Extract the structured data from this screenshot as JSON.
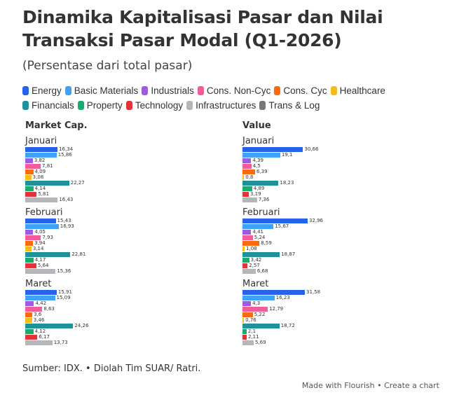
{
  "header": {
    "title": "Dinamika Kapitalisasi Pasar dan Nilai Transaksi Pasar Modal (Q1-2026)",
    "subtitle": "(Persentase dari total pasar)"
  },
  "legend": [
    {
      "label": "Energy",
      "color": "#2563eb"
    },
    {
      "label": "Basic Materials",
      "color": "#3fa2f7"
    },
    {
      "label": "Industrials",
      "color": "#9d5ce0"
    },
    {
      "label": "Cons. Non-Cyc",
      "color": "#f25c9a"
    },
    {
      "label": "Cons. Cyc",
      "color": "#fa6b10"
    },
    {
      "label": "Healthcare",
      "color": "#f4bd1b"
    },
    {
      "label": "Financials",
      "color": "#1f9199"
    },
    {
      "label": "Property",
      "color": "#19aa6e"
    },
    {
      "label": "Technology",
      "color": "#e2333b"
    },
    {
      "label": "Infrastructures",
      "color": "#b4b6b9"
    },
    {
      "label": "Trans & Log",
      "color": "#787878"
    }
  ],
  "chart_data": [
    {
      "type": "bar",
      "orientation": "horizontal",
      "title": "Market Cap.",
      "groups": [
        "Januari",
        "Februari",
        "Maret"
      ],
      "series": [
        {
          "name": "Energy",
          "values": [
            16.34,
            15.43,
            15.91
          ]
        },
        {
          "name": "Basic Materials",
          "values": [
            15.86,
            16.93,
            15.09
          ]
        },
        {
          "name": "Industrials",
          "values": [
            3.82,
            4.05,
            4.42
          ]
        },
        {
          "name": "Cons. Non-Cyc",
          "values": [
            7.81,
            7.93,
            8.63
          ]
        },
        {
          "name": "Cons. Cyc",
          "values": [
            4.09,
            3.94,
            3.6
          ]
        },
        {
          "name": "Healthcare",
          "values": [
            3.08,
            3.14,
            3.46
          ]
        },
        {
          "name": "Financials",
          "values": [
            22.27,
            22.81,
            24.26
          ]
        },
        {
          "name": "Property",
          "values": [
            4.14,
            4.17,
            4.12
          ]
        },
        {
          "name": "Technology",
          "values": [
            5.81,
            5.64,
            6.17
          ]
        },
        {
          "name": "Infrastructures",
          "values": [
            16.43,
            15.36,
            13.73
          ]
        }
      ],
      "value_labels": [
        [
          "16,34",
          "15,86",
          "3,82",
          "7,81",
          "4,09",
          "3,08",
          "22,27",
          "4,14",
          "5,81",
          "16,43"
        ],
        [
          "15,43",
          "16,93",
          "4,05",
          "7,93",
          "3,94",
          "3,14",
          "22,81",
          "4,17",
          "5,64",
          "15,36"
        ],
        [
          "15,91",
          "15,09",
          "4,42",
          "8,63",
          "3,6",
          "3,46",
          "24,26",
          "4,12",
          "6,17",
          "13,73"
        ]
      ],
      "unit": "%",
      "grid": false
    },
    {
      "type": "bar",
      "orientation": "horizontal",
      "title": "Value",
      "groups": [
        "Januari",
        "Februari",
        "Maret"
      ],
      "series": [
        {
          "name": "Energy",
          "values": [
            30.66,
            32.96,
            31.58
          ]
        },
        {
          "name": "Basic Materials",
          "values": [
            19.1,
            15.67,
            16.23
          ]
        },
        {
          "name": "Industrials",
          "values": [
            4.39,
            4.41,
            4.3
          ]
        },
        {
          "name": "Cons. Non-Cyc",
          "values": [
            4.5,
            5.24,
            12.79
          ]
        },
        {
          "name": "Cons. Cyc",
          "values": [
            6.39,
            8.59,
            5.22
          ]
        },
        {
          "name": "Healthcare",
          "values": [
            0.8,
            1.08,
            0.76
          ]
        },
        {
          "name": "Financials",
          "values": [
            18.23,
            18.87,
            18.72
          ]
        },
        {
          "name": "Property",
          "values": [
            4.89,
            3.42,
            2.1
          ]
        },
        {
          "name": "Technology",
          "values": [
            3.19,
            2.57,
            2.11
          ]
        },
        {
          "name": "Infrastructures",
          "values": [
            7.36,
            6.68,
            5.69
          ]
        }
      ],
      "value_labels": [
        [
          "30,66",
          "19,1",
          "4,39",
          "4,5",
          "6,39",
          "0,8",
          "18,23",
          "4,89",
          "3,19",
          "7,36"
        ],
        [
          "32,96",
          "15,67",
          "4,41",
          "5,24",
          "8,59",
          "1,08",
          "18,87",
          "3,42",
          "2,57",
          "6,68"
        ],
        [
          "31,58",
          "16,23",
          "4,3",
          "12,79",
          "5,22",
          "0,76",
          "18,72",
          "2,1",
          "2,11",
          "5,69"
        ]
      ],
      "unit": "%",
      "grid": false
    }
  ],
  "footer": {
    "source": "Sumber: IDX. • Diolah Tim SUAR/ Ratri.",
    "made_with": "Made with Flourish",
    "separator": "•",
    "create_link": "Create a chart"
  }
}
